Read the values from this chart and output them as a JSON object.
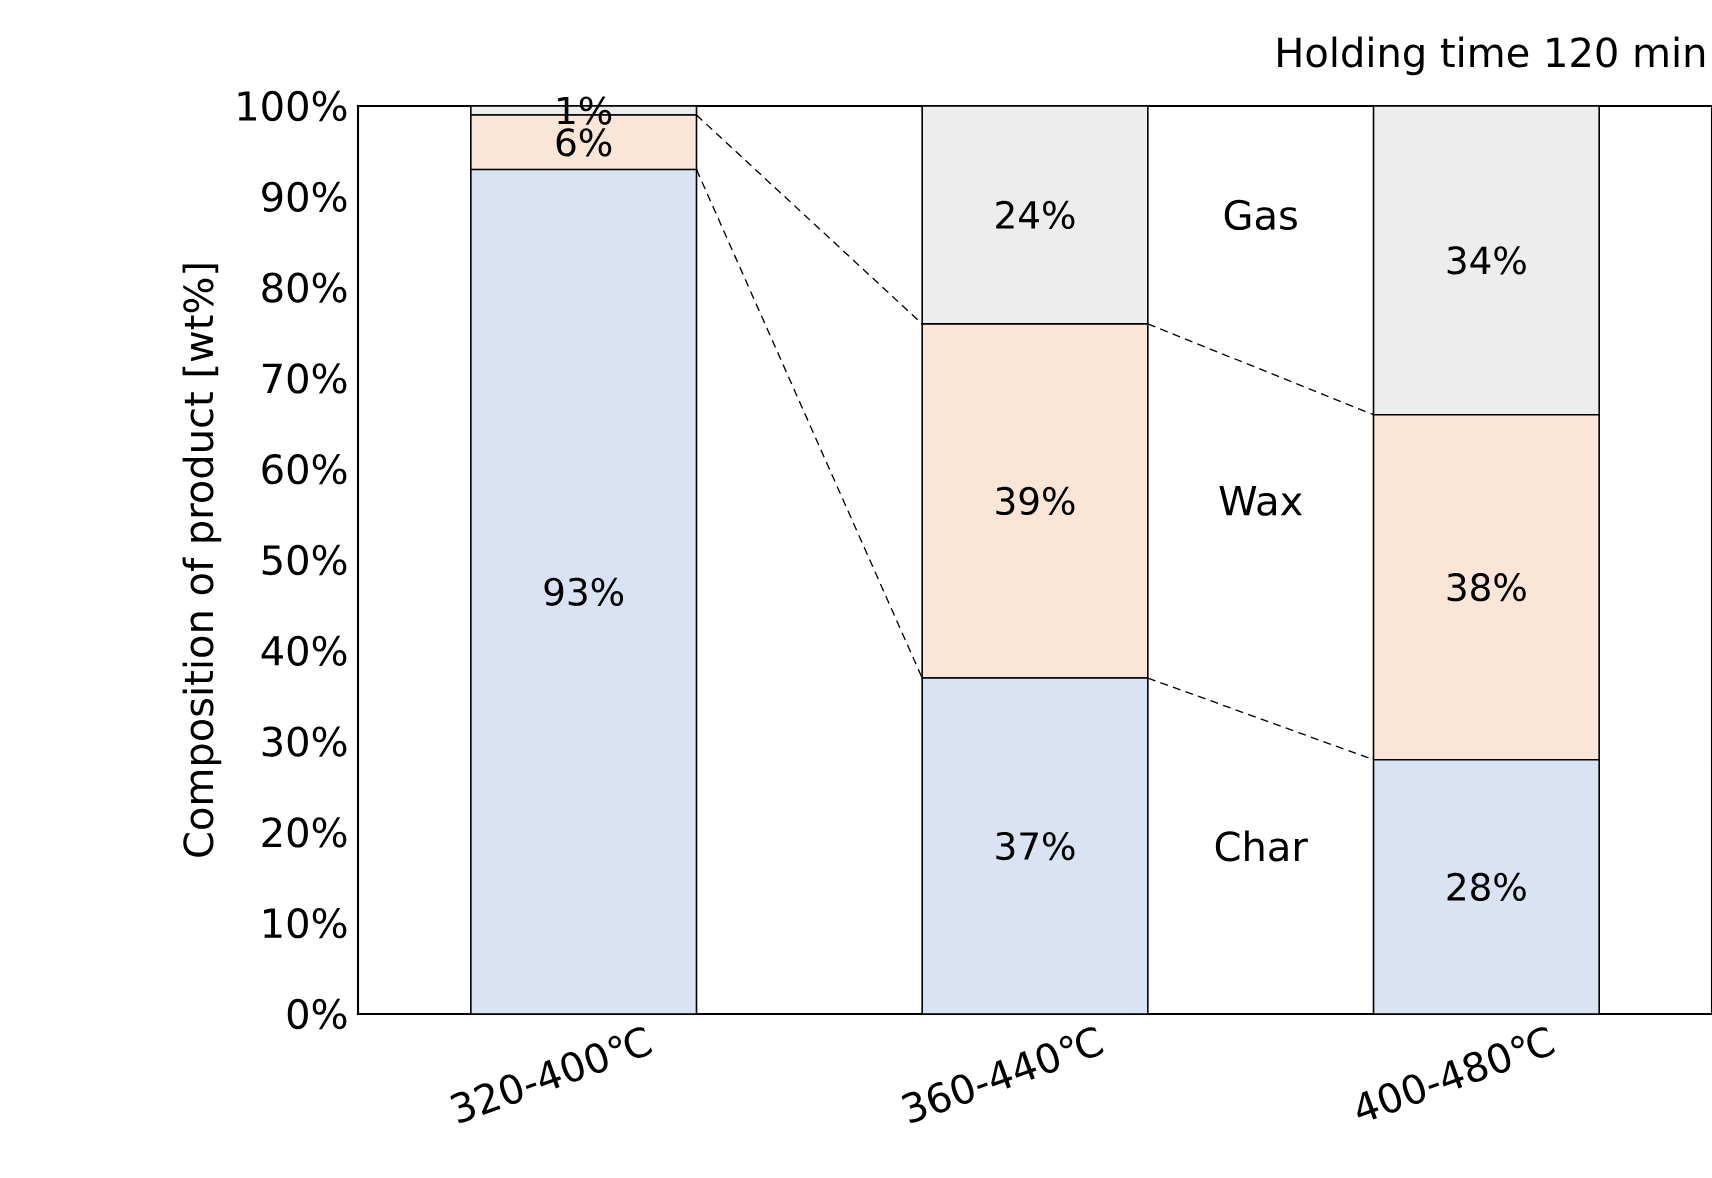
{
  "chart_data": {
    "type": "bar",
    "stacked": true,
    "title": "Holding time 120 min",
    "ylabel": "Composition of product [wt%]",
    "categories": [
      "320-400℃",
      "360-440℃",
      "400-480℃"
    ],
    "series": [
      {
        "name": "Char",
        "color": "#dae3f3",
        "values": [
          93,
          37,
          28
        ],
        "value_labels": [
          "93%",
          "37%",
          "28%"
        ]
      },
      {
        "name": "Wax",
        "color": "#fbe5d6",
        "values": [
          6,
          39,
          38
        ],
        "value_labels": [
          "6%",
          "39%",
          "38%"
        ]
      },
      {
        "name": "Gas",
        "color": "#ededed",
        "values": [
          1,
          24,
          34
        ],
        "value_labels": [
          "1%",
          "24%",
          "34%"
        ]
      }
    ],
    "ylim": [
      0,
      100
    ],
    "yticks": [
      {
        "value": 0,
        "label": "0%"
      },
      {
        "value": 10,
        "label": "10%"
      },
      {
        "value": 20,
        "label": "20%"
      },
      {
        "value": 30,
        "label": "30%"
      },
      {
        "value": 40,
        "label": "40%"
      },
      {
        "value": 50,
        "label": "50%"
      },
      {
        "value": 60,
        "label": "60%"
      },
      {
        "value": 70,
        "label": "70%"
      },
      {
        "value": 80,
        "label": "80%"
      },
      {
        "value": 90,
        "label": "90%"
      },
      {
        "value": 100,
        "label": "100%"
      }
    ],
    "grid": false
  }
}
